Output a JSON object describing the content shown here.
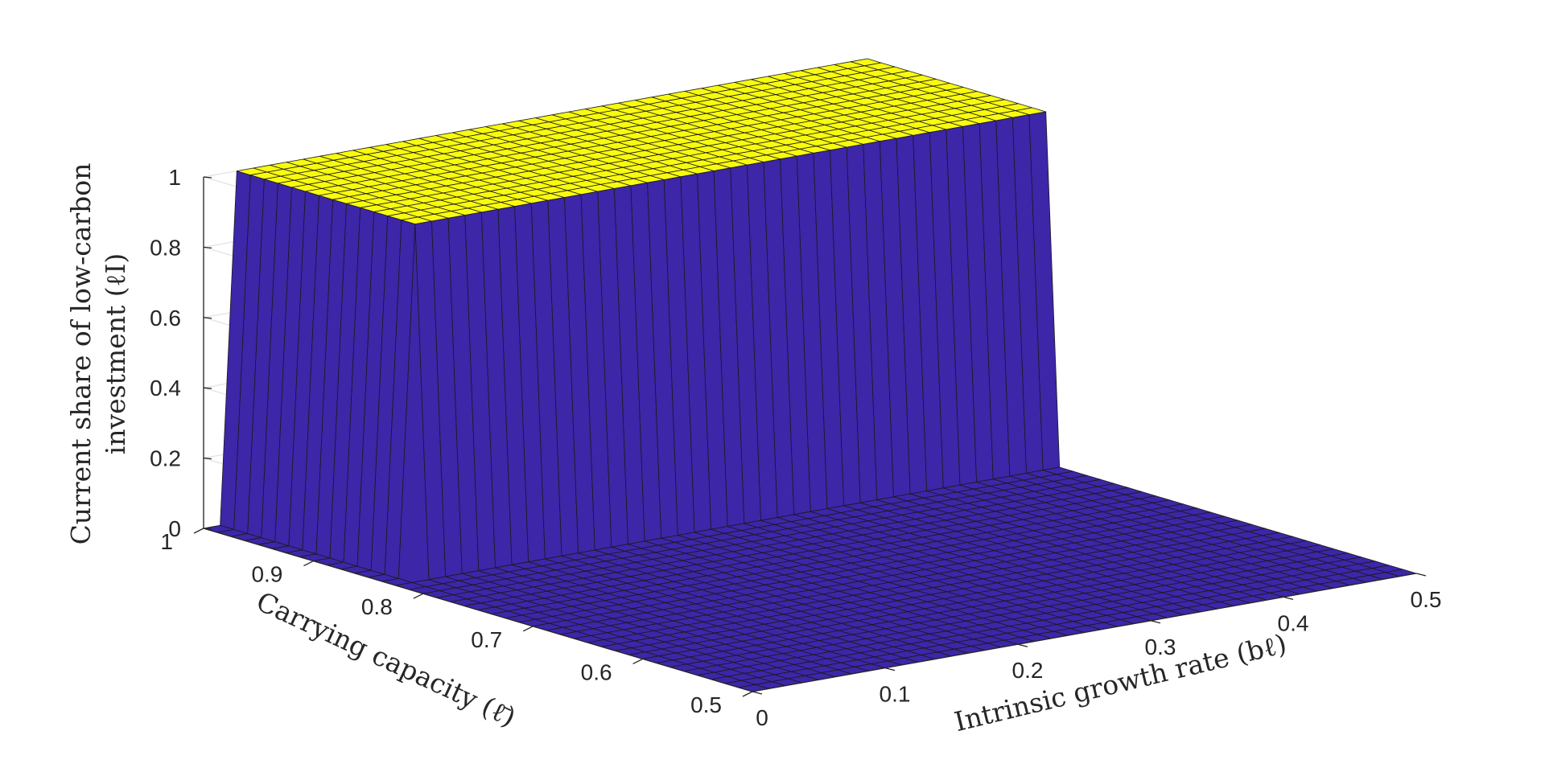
{
  "chart_data": {
    "type": "surface",
    "title": "",
    "xlabel": "Intrinsic growth rate (bℓ)",
    "ylabel": "Carrying capacity (ℓ̄)",
    "zlabel_lines": [
      "Current share of low-carbon",
      "investment (ℓI)"
    ],
    "xlim": [
      0,
      0.5
    ],
    "ylim": [
      0.5,
      1
    ],
    "zlim": [
      0,
      1
    ],
    "x_ticks": [
      "0",
      "0.1",
      "0.2",
      "0.3",
      "0.4",
      "0.5"
    ],
    "y_ticks": [
      "0.5",
      "0.6",
      "0.7",
      "0.8",
      "0.9",
      "1"
    ],
    "z_ticks": [
      "0",
      "0.2",
      "0.4",
      "0.6",
      "0.8",
      "1"
    ],
    "grid": true,
    "colormap_low": "#3d26a8",
    "colormap_high": "#f9fb0e",
    "surface_description_values": {
      "high_region_x_min": 0.02,
      "high_region_y_min": 0.83,
      "low_value": 0,
      "high_value": 1
    }
  }
}
